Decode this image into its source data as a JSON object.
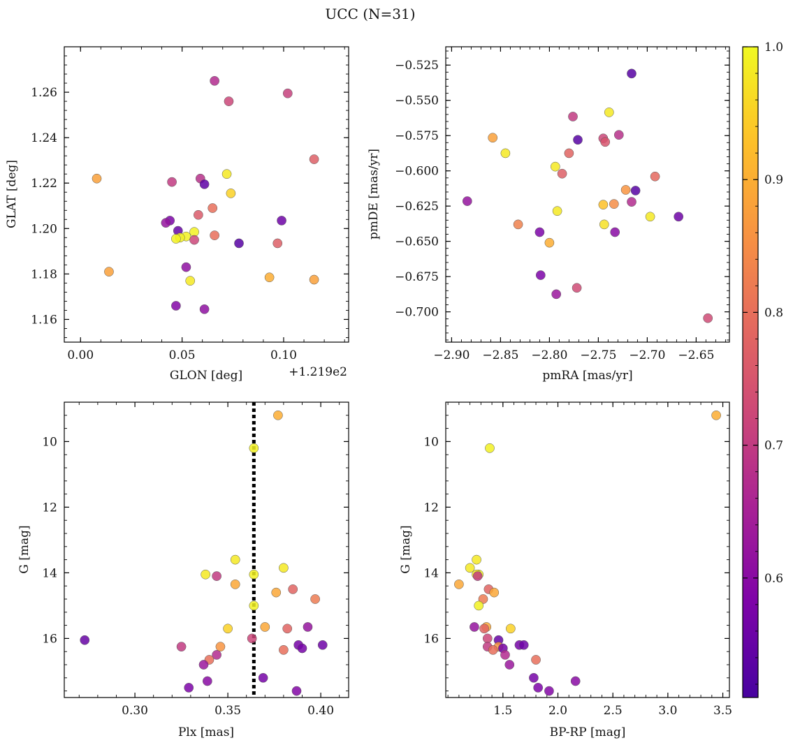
{
  "figure": {
    "title": "UCC (N=31)",
    "colormap": "plasma",
    "marker_edge_color": "#555555",
    "vertical_line_color": "#000000"
  },
  "colorbar": {
    "range": [
      0.51,
      1.0
    ],
    "ticks": [
      0.6,
      0.7,
      0.8,
      0.9,
      1.0
    ],
    "tick_labels": [
      "0.6",
      "0.7",
      "0.8",
      "0.9",
      "1.0"
    ]
  },
  "chart_data": [
    {
      "type": "scatter",
      "id": "sky",
      "xlabel": "GLON [deg]",
      "ylabel": "GLAT [deg]",
      "offset_text": "+1.219e2",
      "xlim": [
        -0.008,
        0.132
      ],
      "ylim": [
        1.15,
        1.28
      ],
      "x_ticks": [
        0.0,
        0.05,
        0.1
      ],
      "x_tick_labels": [
        "0.00",
        "0.05",
        "0.10"
      ],
      "y_ticks": [
        1.16,
        1.18,
        1.2,
        1.22,
        1.24,
        1.26
      ],
      "y_tick_labels": [
        "1.16",
        "1.18",
        "1.20",
        "1.22",
        "1.24",
        "1.26"
      ],
      "points": [
        {
          "x": 0.066,
          "y": 1.265,
          "c": 0.67
        },
        {
          "x": 0.102,
          "y": 1.2595,
          "c": 0.71
        },
        {
          "x": 0.073,
          "y": 1.256,
          "c": 0.72
        },
        {
          "x": 0.115,
          "y": 1.2305,
          "c": 0.77
        },
        {
          "x": 0.072,
          "y": 1.224,
          "c": 0.98
        },
        {
          "x": 0.008,
          "y": 1.222,
          "c": 0.88
        },
        {
          "x": 0.059,
          "y": 1.222,
          "c": 0.68
        },
        {
          "x": 0.045,
          "y": 1.2205,
          "c": 0.7
        },
        {
          "x": 0.061,
          "y": 1.2195,
          "c": 0.54
        },
        {
          "x": 0.074,
          "y": 1.2155,
          "c": 0.95
        },
        {
          "x": 0.065,
          "y": 1.209,
          "c": 0.8
        },
        {
          "x": 0.058,
          "y": 1.206,
          "c": 0.76
        },
        {
          "x": 0.044,
          "y": 1.2035,
          "c": 0.58
        },
        {
          "x": 0.099,
          "y": 1.2035,
          "c": 0.56
        },
        {
          "x": 0.042,
          "y": 1.2025,
          "c": 0.62
        },
        {
          "x": 0.048,
          "y": 1.199,
          "c": 0.55
        },
        {
          "x": 0.056,
          "y": 1.1985,
          "c": 0.99
        },
        {
          "x": 0.066,
          "y": 1.197,
          "c": 0.8
        },
        {
          "x": 0.052,
          "y": 1.1965,
          "c": 0.99
        },
        {
          "x": 0.049,
          "y": 1.196,
          "c": 0.99
        },
        {
          "x": 0.047,
          "y": 1.1955,
          "c": 0.99
        },
        {
          "x": 0.056,
          "y": 1.195,
          "c": 0.72
        },
        {
          "x": 0.078,
          "y": 1.1935,
          "c": 0.53
        },
        {
          "x": 0.097,
          "y": 1.1935,
          "c": 0.77
        },
        {
          "x": 0.052,
          "y": 1.183,
          "c": 0.61
        },
        {
          "x": 0.014,
          "y": 1.181,
          "c": 0.88
        },
        {
          "x": 0.093,
          "y": 1.1785,
          "c": 0.9
        },
        {
          "x": 0.054,
          "y": 1.177,
          "c": 0.98
        },
        {
          "x": 0.115,
          "y": 1.1775,
          "c": 0.88
        },
        {
          "x": 0.047,
          "y": 1.166,
          "c": 0.59
        },
        {
          "x": 0.061,
          "y": 1.1645,
          "c": 0.61
        }
      ]
    },
    {
      "type": "scatter",
      "id": "pm",
      "xlabel": "pmRA [mas/yr]",
      "ylabel": "pmDE [mas/yr]",
      "xlim": [
        -2.906,
        -2.616
      ],
      "ylim": [
        -0.7215,
        -0.512
      ],
      "x_ticks": [
        -2.9,
        -2.85,
        -2.8,
        -2.75,
        -2.7,
        -2.65
      ],
      "x_tick_labels": [
        "−2.90",
        "−2.85",
        "−2.80",
        "−2.75",
        "−2.70",
        "−2.65"
      ],
      "y_ticks": [
        -0.7,
        -0.675,
        -0.65,
        -0.625,
        -0.6,
        -0.575,
        -0.55,
        -0.525
      ],
      "y_tick_labels": [
        "−0.700",
        "−0.675",
        "−0.650",
        "−0.625",
        "−0.600",
        "−0.575",
        "−0.550",
        "−0.525"
      ],
      "points": [
        {
          "x": -2.716,
          "y": -0.531,
          "c": 0.53
        },
        {
          "x": -2.739,
          "y": -0.5585,
          "c": 0.98
        },
        {
          "x": -2.776,
          "y": -0.5615,
          "c": 0.7
        },
        {
          "x": -2.771,
          "y": -0.578,
          "c": 0.53
        },
        {
          "x": -2.729,
          "y": -0.5745,
          "c": 0.68
        },
        {
          "x": -2.745,
          "y": -0.577,
          "c": 0.72
        },
        {
          "x": -2.743,
          "y": -0.5795,
          "c": 0.75
        },
        {
          "x": -2.858,
          "y": -0.5765,
          "c": 0.88
        },
        {
          "x": -2.845,
          "y": -0.5875,
          "c": 0.98
        },
        {
          "x": -2.78,
          "y": -0.5875,
          "c": 0.78
        },
        {
          "x": -2.794,
          "y": -0.597,
          "c": 0.98
        },
        {
          "x": -2.787,
          "y": -0.602,
          "c": 0.77
        },
        {
          "x": -2.692,
          "y": -0.604,
          "c": 0.79
        },
        {
          "x": -2.722,
          "y": -0.6135,
          "c": 0.86
        },
        {
          "x": -2.712,
          "y": -0.614,
          "c": 0.53
        },
        {
          "x": -2.884,
          "y": -0.6215,
          "c": 0.62
        },
        {
          "x": -2.716,
          "y": -0.622,
          "c": 0.67
        },
        {
          "x": -2.745,
          "y": -0.624,
          "c": 0.93
        },
        {
          "x": -2.734,
          "y": -0.6235,
          "c": 0.85
        },
        {
          "x": -2.792,
          "y": -0.6285,
          "c": 0.98
        },
        {
          "x": -2.697,
          "y": -0.6325,
          "c": 0.98
        },
        {
          "x": -2.668,
          "y": -0.6325,
          "c": 0.56
        },
        {
          "x": -2.832,
          "y": -0.638,
          "c": 0.83
        },
        {
          "x": -2.744,
          "y": -0.638,
          "c": 0.97
        },
        {
          "x": -2.81,
          "y": -0.6435,
          "c": 0.58
        },
        {
          "x": -2.733,
          "y": -0.6435,
          "c": 0.6
        },
        {
          "x": -2.8,
          "y": -0.651,
          "c": 0.9
        },
        {
          "x": -2.809,
          "y": -0.674,
          "c": 0.58
        },
        {
          "x": -2.772,
          "y": -0.683,
          "c": 0.73
        },
        {
          "x": -2.793,
          "y": -0.6875,
          "c": 0.63
        },
        {
          "x": -2.638,
          "y": -0.7045,
          "c": 0.73
        }
      ]
    },
    {
      "type": "scatter",
      "id": "plx",
      "xlabel": "Plx [mas]",
      "ylabel": "G [mag]",
      "xlim": [
        0.262,
        0.415
      ],
      "ylim": [
        17.8,
        8.8
      ],
      "vline": 0.364,
      "x_ticks": [
        0.3,
        0.35,
        0.4
      ],
      "x_tick_labels": [
        "0.30",
        "0.35",
        "0.40"
      ],
      "y_ticks": [
        10,
        12,
        14,
        16
      ],
      "y_tick_labels": [
        "10",
        "12",
        "14",
        "16"
      ],
      "points": [
        {
          "x": 0.377,
          "y": 9.2,
          "c": 0.9
        },
        {
          "x": 0.364,
          "y": 10.2,
          "c": 0.99
        },
        {
          "x": 0.354,
          "y": 13.6,
          "c": 0.98
        },
        {
          "x": 0.38,
          "y": 13.85,
          "c": 0.98
        },
        {
          "x": 0.338,
          "y": 14.05,
          "c": 0.98
        },
        {
          "x": 0.364,
          "y": 14.05,
          "c": 0.99
        },
        {
          "x": 0.344,
          "y": 14.1,
          "c": 0.7
        },
        {
          "x": 0.354,
          "y": 14.35,
          "c": 0.89
        },
        {
          "x": 0.385,
          "y": 14.5,
          "c": 0.78
        },
        {
          "x": 0.376,
          "y": 14.6,
          "c": 0.89
        },
        {
          "x": 0.397,
          "y": 14.8,
          "c": 0.82
        },
        {
          "x": 0.364,
          "y": 15.0,
          "c": 0.99
        },
        {
          "x": 0.35,
          "y": 15.7,
          "c": 0.95
        },
        {
          "x": 0.37,
          "y": 15.65,
          "c": 0.89
        },
        {
          "x": 0.382,
          "y": 15.7,
          "c": 0.78
        },
        {
          "x": 0.393,
          "y": 15.65,
          "c": 0.62
        },
        {
          "x": 0.363,
          "y": 16.0,
          "c": 0.72
        },
        {
          "x": 0.273,
          "y": 16.05,
          "c": 0.55
        },
        {
          "x": 0.325,
          "y": 16.25,
          "c": 0.7
        },
        {
          "x": 0.346,
          "y": 16.25,
          "c": 0.86
        },
        {
          "x": 0.388,
          "y": 16.2,
          "c": 0.57
        },
        {
          "x": 0.39,
          "y": 16.3,
          "c": 0.57
        },
        {
          "x": 0.401,
          "y": 16.2,
          "c": 0.56
        },
        {
          "x": 0.38,
          "y": 16.35,
          "c": 0.8
        },
        {
          "x": 0.344,
          "y": 16.5,
          "c": 0.67
        },
        {
          "x": 0.34,
          "y": 16.65,
          "c": 0.8
        },
        {
          "x": 0.337,
          "y": 16.8,
          "c": 0.63
        },
        {
          "x": 0.369,
          "y": 17.2,
          "c": 0.57
        },
        {
          "x": 0.339,
          "y": 17.3,
          "c": 0.6
        },
        {
          "x": 0.329,
          "y": 17.5,
          "c": 0.58
        },
        {
          "x": 0.387,
          "y": 17.6,
          "c": 0.59
        }
      ]
    },
    {
      "type": "scatter",
      "id": "cmd",
      "xlabel": "BP-RP [mag]",
      "ylabel": "G [mag]",
      "xlim": [
        0.98,
        3.56
      ],
      "ylim": [
        17.8,
        8.8
      ],
      "x_ticks": [
        1.5,
        2.0,
        2.5,
        3.0,
        3.5
      ],
      "x_tick_labels": [
        "1.5",
        "2.0",
        "2.5",
        "3.0",
        "3.5"
      ],
      "y_ticks": [
        10,
        12,
        14,
        16
      ],
      "y_tick_labels": [
        "10",
        "12",
        "14",
        "16"
      ],
      "points": [
        {
          "x": 3.44,
          "y": 9.2,
          "c": 0.9
        },
        {
          "x": 1.38,
          "y": 10.2,
          "c": 0.99
        },
        {
          "x": 1.26,
          "y": 13.6,
          "c": 0.98
        },
        {
          "x": 1.2,
          "y": 13.85,
          "c": 0.98
        },
        {
          "x": 1.28,
          "y": 14.05,
          "c": 0.99
        },
        {
          "x": 1.26,
          "y": 14.05,
          "c": 0.98
        },
        {
          "x": 1.27,
          "y": 14.1,
          "c": 0.7
        },
        {
          "x": 1.1,
          "y": 14.35,
          "c": 0.89
        },
        {
          "x": 1.37,
          "y": 14.5,
          "c": 0.78
        },
        {
          "x": 1.42,
          "y": 14.6,
          "c": 0.89
        },
        {
          "x": 1.32,
          "y": 14.8,
          "c": 0.82
        },
        {
          "x": 1.28,
          "y": 15.0,
          "c": 0.99
        },
        {
          "x": 1.57,
          "y": 15.7,
          "c": 0.95
        },
        {
          "x": 1.35,
          "y": 15.65,
          "c": 0.89
        },
        {
          "x": 1.33,
          "y": 15.7,
          "c": 0.78
        },
        {
          "x": 1.24,
          "y": 15.65,
          "c": 0.62
        },
        {
          "x": 1.36,
          "y": 16.0,
          "c": 0.72
        },
        {
          "x": 1.46,
          "y": 16.05,
          "c": 0.55
        },
        {
          "x": 1.36,
          "y": 16.25,
          "c": 0.7
        },
        {
          "x": 1.46,
          "y": 16.25,
          "c": 0.86
        },
        {
          "x": 1.65,
          "y": 16.2,
          "c": 0.57
        },
        {
          "x": 1.5,
          "y": 16.3,
          "c": 0.57
        },
        {
          "x": 1.69,
          "y": 16.2,
          "c": 0.56
        },
        {
          "x": 1.41,
          "y": 16.35,
          "c": 0.8
        },
        {
          "x": 1.52,
          "y": 16.5,
          "c": 0.67
        },
        {
          "x": 1.8,
          "y": 16.65,
          "c": 0.8
        },
        {
          "x": 1.56,
          "y": 16.8,
          "c": 0.63
        },
        {
          "x": 1.78,
          "y": 17.2,
          "c": 0.57
        },
        {
          "x": 2.16,
          "y": 17.3,
          "c": 0.6
        },
        {
          "x": 1.82,
          "y": 17.5,
          "c": 0.58
        },
        {
          "x": 1.92,
          "y": 17.6,
          "c": 0.59
        }
      ]
    }
  ]
}
